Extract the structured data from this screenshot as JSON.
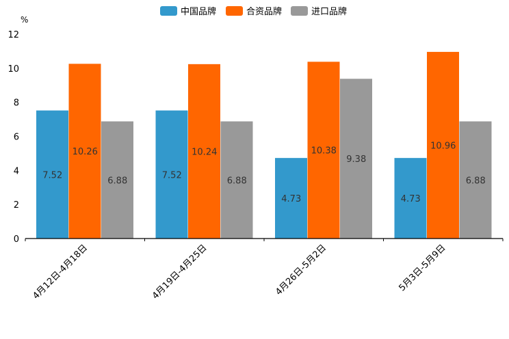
{
  "chart_data": {
    "type": "bar",
    "title": "",
    "xlabel": "",
    "ylabel": "%",
    "ylim": [
      0,
      12
    ],
    "yticks": [
      0,
      2,
      4,
      6,
      8,
      10,
      12
    ],
    "grid": false,
    "legend_position": "top-center",
    "categories": [
      "4月12日-4月18日",
      "4月19日-4月25日",
      "4月26日-5月2日",
      "5月3日-5月9日"
    ],
    "series": [
      {
        "name": "中国品牌",
        "color": "#3399cc",
        "values": [
          7.52,
          7.52,
          4.73,
          4.73
        ],
        "labels": [
          "7.52",
          "7.52",
          "4.73",
          "4.73"
        ]
      },
      {
        "name": "合资品牌",
        "color": "#ff6600",
        "values": [
          10.26,
          10.24,
          10.38,
          10.96
        ],
        "labels": [
          "10.26",
          "10.24",
          "10.38",
          "10.96"
        ]
      },
      {
        "name": "进口品牌",
        "color": "#999999",
        "values": [
          6.88,
          6.88,
          9.38,
          6.88
        ],
        "labels": [
          "6.88",
          "6.88",
          "9.38",
          "6.88"
        ]
      }
    ]
  }
}
